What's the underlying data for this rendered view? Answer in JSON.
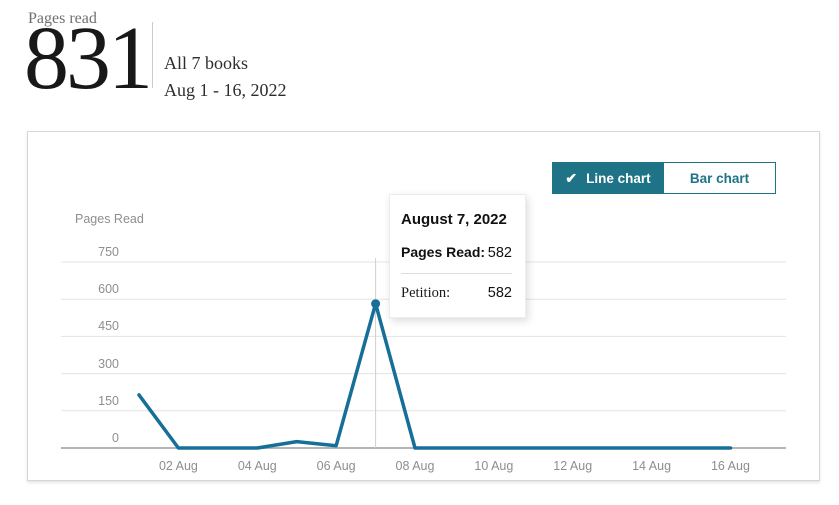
{
  "header": {
    "label": "Pages read",
    "value": "831",
    "scope": "All 7 books",
    "date_range": "Aug 1 - 16, 2022"
  },
  "toolbar": {
    "check_icon": "✔",
    "line_chart_label": "Line chart",
    "bar_chart_label": "Bar chart",
    "selected": "Line chart"
  },
  "tooltip": {
    "date": "August 7, 2022",
    "metric_label": "Pages Read:",
    "metric_value": "582",
    "book_label": "Petition:",
    "book_value": "582"
  },
  "colors": {
    "accent_teal": "#1f7386",
    "line_blue": "#166f99",
    "gridline": "#e3e3e3",
    "axis": "#b4b4b4",
    "crosshair": "#cfcfcf"
  },
  "chart_data": {
    "type": "line",
    "ylabel": "Pages Read",
    "x": [
      "Aug 1",
      "Aug 2",
      "Aug 3",
      "Aug 4",
      "Aug 5",
      "Aug 6",
      "Aug 7",
      "Aug 8",
      "Aug 9",
      "Aug 10",
      "Aug 11",
      "Aug 12",
      "Aug 13",
      "Aug 14",
      "Aug 15",
      "Aug 16"
    ],
    "values": [
      214,
      0,
      0,
      0,
      26,
      9,
      582,
      0,
      0,
      0,
      0,
      0,
      0,
      0,
      0,
      0
    ],
    "y_ticks": [
      0,
      150,
      300,
      450,
      600,
      750
    ],
    "x_tick_labels": [
      "02 Aug",
      "04 Aug",
      "06 Aug",
      "08 Aug",
      "10 Aug",
      "12 Aug",
      "14 Aug",
      "16 Aug"
    ],
    "ylim": [
      0,
      780
    ],
    "grid": true,
    "legend": false,
    "highlight": {
      "x_index": 6,
      "x_label": "August 7, 2022",
      "value": 582
    }
  }
}
